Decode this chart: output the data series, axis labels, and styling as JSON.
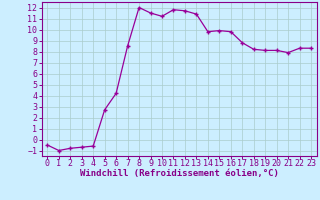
{
  "x": [
    0,
    1,
    2,
    3,
    4,
    5,
    6,
    7,
    8,
    9,
    10,
    11,
    12,
    13,
    14,
    15,
    16,
    17,
    18,
    19,
    20,
    21,
    22,
    23
  ],
  "y": [
    -0.5,
    -1.0,
    -0.8,
    -0.7,
    -0.6,
    2.7,
    4.2,
    8.5,
    12.0,
    11.5,
    11.2,
    11.8,
    11.7,
    11.4,
    9.8,
    9.9,
    9.8,
    8.8,
    8.2,
    8.1,
    8.1,
    7.9,
    8.3,
    8.3
  ],
  "line_color": "#990099",
  "marker": "+",
  "marker_size": 3.5,
  "line_width": 0.9,
  "xlabel": "Windchill (Refroidissement éolien,°C)",
  "xlim": [
    -0.5,
    23.5
  ],
  "ylim": [
    -1.5,
    12.5
  ],
  "yticks": [
    -1,
    0,
    1,
    2,
    3,
    4,
    5,
    6,
    7,
    8,
    9,
    10,
    11,
    12
  ],
  "xticks": [
    0,
    1,
    2,
    3,
    4,
    5,
    6,
    7,
    8,
    9,
    10,
    11,
    12,
    13,
    14,
    15,
    16,
    17,
    18,
    19,
    20,
    21,
    22,
    23
  ],
  "bg_color": "#cceeff",
  "grid_color": "#aacccc",
  "line_label_color": "#880088",
  "xlabel_fontsize": 6.5,
  "tick_fontsize": 6.0,
  "spine_color": "#880088"
}
